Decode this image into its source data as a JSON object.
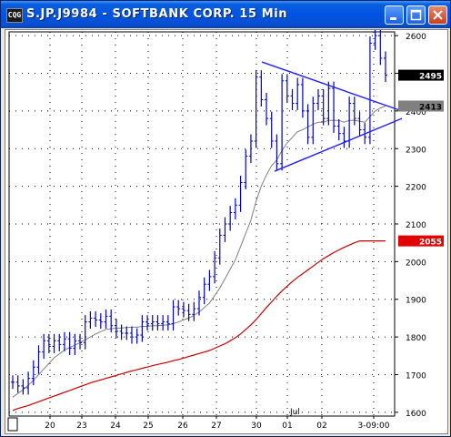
{
  "window": {
    "title": "S.JP.J9984 - SOFTBANK CORP. 15 Min",
    "icon_text": "CQG",
    "buttons": [
      "minimize-icon",
      "maximize-icon",
      "close-icon"
    ]
  },
  "price_axis": {
    "labels": [
      "2600",
      "2500",
      "2400",
      "2300",
      "2200",
      "2100",
      "2000",
      "1900",
      "1800",
      "1700",
      "1600"
    ]
  },
  "markers": {
    "last_price": "2495",
    "ma_fast": "2413",
    "ma_slow": "2055",
    "colors": {
      "last_price_bg": "#000000",
      "ma_fast_bg": "#808080",
      "ma_slow_bg": "#e00000"
    }
  },
  "time_axis": {
    "labels": [
      "20",
      "23",
      "24",
      "25",
      "26",
      "27",
      "30",
      "01",
      "02",
      "3-09:00"
    ],
    "month_label": "Jul"
  },
  "colors": {
    "bars": "#0000c8",
    "ma_fast": "#808080",
    "ma_slow": "#cc0000",
    "trendline": "#2020ff",
    "grid": "#000000"
  },
  "chart_data": {
    "type": "ohlc",
    "title": "S.JP.J9984 - SOFTBANK CORP. 15 Min",
    "ylim": [
      1590,
      2610
    ],
    "y_ticks": [
      1600,
      1700,
      1800,
      1900,
      2000,
      2100,
      2200,
      2300,
      2400,
      2500,
      2600
    ],
    "x_ticks": [
      "20",
      "23",
      "24",
      "25",
      "26",
      "27",
      "30",
      "01",
      "02",
      "3-09:00"
    ],
    "series": [
      {
        "name": "price",
        "values": [
          1680,
          1670,
          1665,
          1690,
          1720,
          1760,
          1790,
          1775,
          1790,
          1780,
          1795,
          1770,
          1790,
          1785,
          1840,
          1850,
          1845,
          1840,
          1855,
          1830,
          1815,
          1810,
          1810,
          1800,
          1805,
          1840,
          1835,
          1840,
          1835,
          1840,
          1835,
          1880,
          1875,
          1870,
          1860,
          1875,
          1905,
          1940,
          1960,
          2010,
          2070,
          2100,
          2130,
          2150,
          2210,
          2280,
          2320,
          2490,
          2430,
          2380,
          2320,
          2260,
          2480,
          2440,
          2420,
          2470,
          2400,
          2330,
          2420,
          2440,
          2380,
          2460,
          2360,
          2340,
          2320,
          2420,
          2380,
          2350,
          2330,
          2580,
          2600,
          2540,
          2495
        ]
      },
      {
        "name": "ma_fast",
        "values": [
          1640,
          1650,
          1660,
          1672,
          1685,
          1700,
          1715,
          1730,
          1745,
          1755,
          1765,
          1772,
          1778,
          1785,
          1792,
          1800,
          1808,
          1814,
          1820,
          1822,
          1823,
          1824,
          1825,
          1826,
          1826,
          1828,
          1828,
          1830,
          1830,
          1831,
          1832,
          1835,
          1840,
          1845,
          1850,
          1857,
          1866,
          1878,
          1890,
          1910,
          1930,
          1955,
          1980,
          2005,
          2040,
          2075,
          2110,
          2160,
          2200,
          2230,
          2255,
          2270,
          2295,
          2315,
          2330,
          2345,
          2350,
          2358,
          2365,
          2370,
          2370,
          2375,
          2375,
          2375,
          2370,
          2375,
          2375,
          2373,
          2370,
          2385,
          2400,
          2408,
          2413
        ]
      },
      {
        "name": "ma_slow",
        "values": [
          1605,
          1610,
          1614,
          1618,
          1623,
          1628,
          1633,
          1638,
          1643,
          1648,
          1653,
          1658,
          1663,
          1668,
          1673,
          1678,
          1682,
          1686,
          1690,
          1694,
          1698,
          1702,
          1706,
          1710,
          1713,
          1717,
          1720,
          1724,
          1727,
          1730,
          1733,
          1737,
          1740,
          1744,
          1748,
          1752,
          1756,
          1760,
          1764,
          1770,
          1776,
          1782,
          1790,
          1798,
          1808,
          1820,
          1832,
          1846,
          1862,
          1878,
          1893,
          1908,
          1922,
          1935,
          1947,
          1958,
          1968,
          1978,
          1988,
          1998,
          2008,
          2016,
          2024,
          2031,
          2038,
          2044,
          2050,
          2055,
          2055,
          2055,
          2055,
          2055,
          2055
        ]
      }
    ],
    "trendlines": [
      {
        "from": [
          "30",
          2530
        ],
        "to": [
          "3-09:00",
          2400
        ]
      },
      {
        "from": [
          "30",
          2240
        ],
        "to": [
          "3-09:00",
          2380
        ]
      }
    ]
  }
}
